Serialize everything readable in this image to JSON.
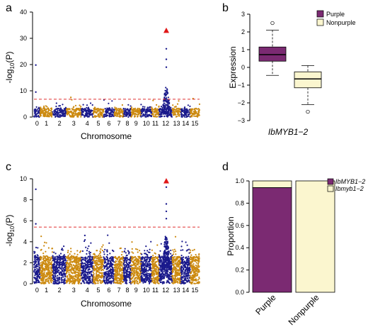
{
  "colors": {
    "blue": "#1a1a8c",
    "orange": "#cc8a10",
    "purple": "#7b2a72",
    "cream": "#fbf6cf",
    "threshold": "#e03030",
    "peak": "#e01818"
  },
  "chart_data": [
    {
      "panel": "a",
      "type": "scatter",
      "ylabel": "-log10(P)",
      "ylabel_main": "-log",
      "ylabel_sub": "10",
      "ylabel_tail": "(P)",
      "xlabel": "Chromosome",
      "ylim": [
        0,
        40
      ],
      "yticks": [
        0,
        10,
        20,
        30,
        40
      ],
      "chromosomes": [
        "0",
        "1",
        "2",
        "3",
        "4",
        "5",
        "6",
        "7",
        "8",
        "9",
        "10",
        "11",
        "12",
        "13",
        "14",
        "15"
      ],
      "threshold": 6.8,
      "peak": {
        "chromosome": "12",
        "value": 33
      },
      "notable_points": [
        {
          "chromosome": "0",
          "value": 19.8
        },
        {
          "chromosome": "0",
          "value": 9.5
        },
        {
          "chromosome": "3",
          "value": 7.5
        },
        {
          "chromosome": "12",
          "value": 26
        },
        {
          "chromosome": "12",
          "value": 22
        },
        {
          "chromosome": "12",
          "value": 19
        },
        {
          "chromosome": "15",
          "value": 7
        }
      ],
      "colors": [
        "#1a1a8c",
        "#cc8a10"
      ]
    },
    {
      "panel": "b",
      "type": "boxplot",
      "ylabel": "Expression",
      "xlabel": "IbMYB1−2",
      "ylim": [
        -3,
        3
      ],
      "yticks": [
        "−3",
        "−2",
        "−1",
        "0",
        "1",
        "2",
        "3"
      ],
      "legend": [
        {
          "label": "Purple",
          "color": "#7b2a72"
        },
        {
          "label": "Nonpurple",
          "color": "#fbf6cf"
        }
      ],
      "legend_position": "top-right",
      "series": [
        {
          "name": "Purple",
          "whisker_low": -0.45,
          "q1": 0.35,
          "median": 0.72,
          "q3": 1.15,
          "whisker_high": 2.1,
          "outliers": [
            2.5
          ]
        },
        {
          "name": "Nonpurple",
          "whisker_low": -2.1,
          "q1": -1.15,
          "median": -0.65,
          "q3": -0.25,
          "whisker_high": 0.1,
          "outliers": [
            -2.5
          ]
        }
      ]
    },
    {
      "panel": "c",
      "type": "scatter",
      "ylabel": "-log10(P)",
      "ylabel_main": "-log",
      "ylabel_sub": "10",
      "ylabel_tail": "(P)",
      "xlabel": "Chromosome",
      "ylim": [
        0,
        10
      ],
      "yticks": [
        0,
        2,
        4,
        6,
        8,
        10
      ],
      "chromosomes": [
        "0",
        "1",
        "2",
        "3",
        "4",
        "5",
        "6",
        "7",
        "8",
        "9",
        "10",
        "11",
        "12",
        "13",
        "14",
        "15"
      ],
      "threshold": 5.4,
      "peak": {
        "chromosome": "12",
        "value": 9.8
      },
      "notable_points": [
        {
          "chromosome": "0",
          "value": 9.0
        },
        {
          "chromosome": "0",
          "value": 5.7
        },
        {
          "chromosome": "4",
          "value": 4.6
        },
        {
          "chromosome": "12",
          "value": 9.2
        },
        {
          "chromosome": "12",
          "value": 7.6
        },
        {
          "chromosome": "12",
          "value": 6.9
        },
        {
          "chromosome": "12",
          "value": 6.2
        }
      ],
      "colors": [
        "#1a1a8c",
        "#cc8a10"
      ]
    },
    {
      "panel": "d",
      "type": "bar",
      "stacked": true,
      "ylabel": "Proportion",
      "ylim": [
        0,
        1
      ],
      "yticks": [
        "0.0",
        "0.2",
        "0.4",
        "0.6",
        "0.8",
        "1.0"
      ],
      "categories": [
        "Purple",
        "Nonpurple"
      ],
      "series": [
        {
          "name": "IbMYB1−2",
          "color": "#7b2a72",
          "values": [
            0.94,
            0.0
          ]
        },
        {
          "name": "Ibmyb1−2",
          "color": "#fbf6cf",
          "values": [
            0.06,
            1.0
          ]
        }
      ],
      "legend_position": "top-right"
    }
  ],
  "panel_labels": {
    "a": "a",
    "b": "b",
    "c": "c",
    "d": "d"
  }
}
